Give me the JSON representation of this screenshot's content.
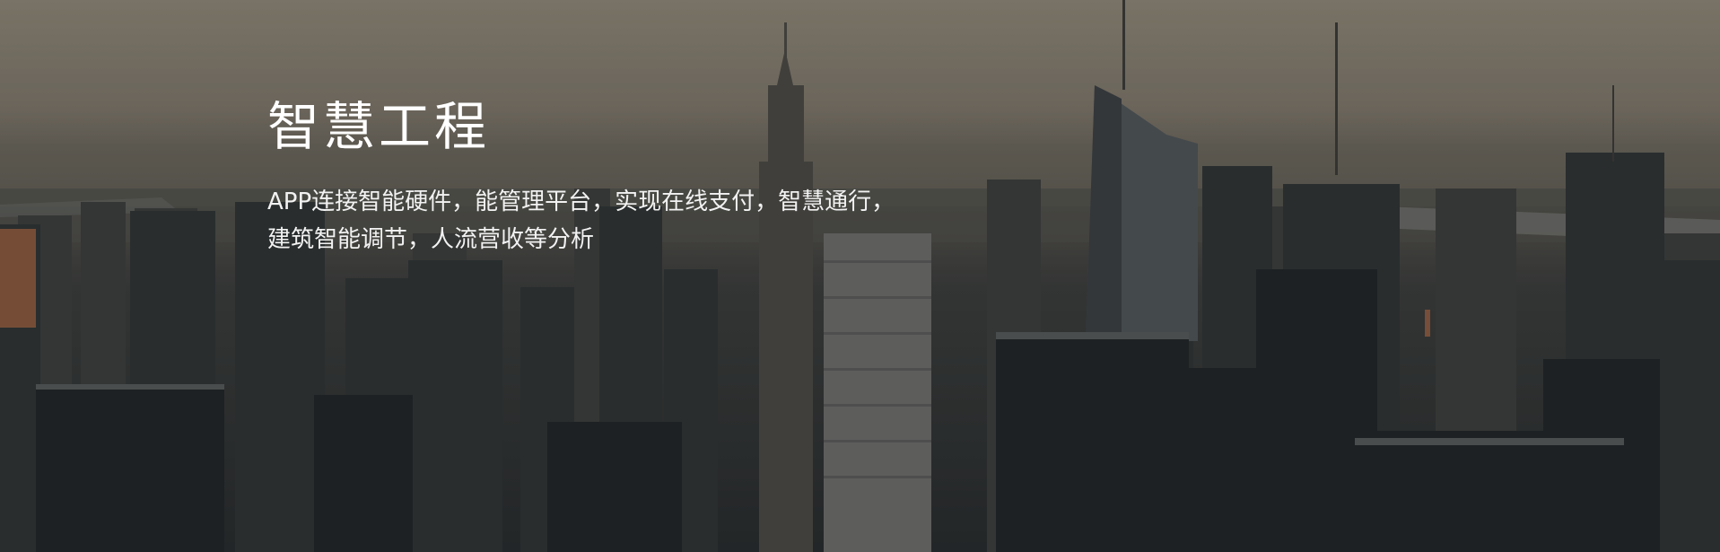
{
  "hero": {
    "title": "智慧工程",
    "description_lines": [
      "APP连接智能硬件，能管理平台，实现在线支付，智慧通行，",
      "建筑智能调节，人流营收等分析"
    ]
  },
  "colors": {
    "text": "#ffffff",
    "sky": "#8f8778",
    "buildings": "#1f2426"
  }
}
